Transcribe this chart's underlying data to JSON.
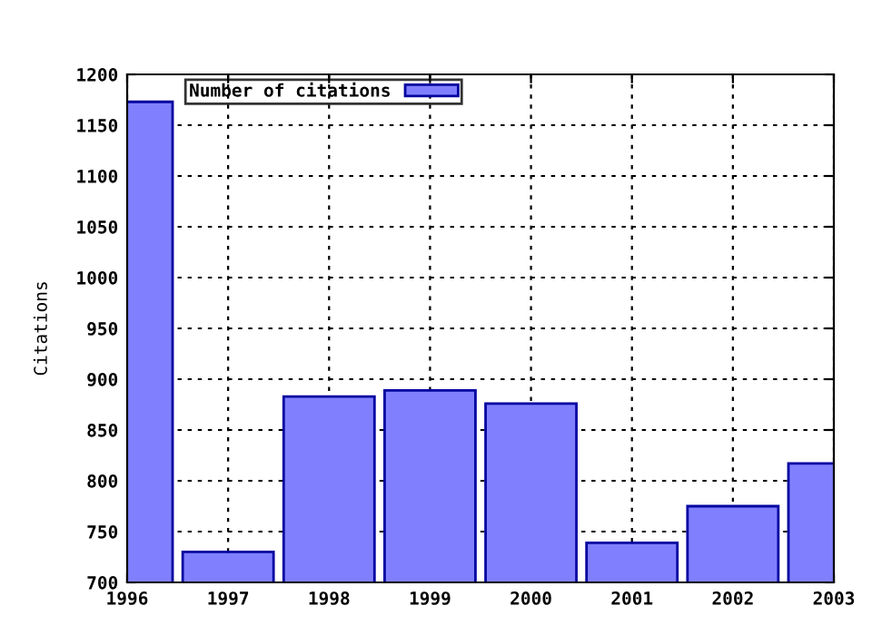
{
  "chart_data": {
    "type": "bar",
    "ylabel": "Citations",
    "x": [
      1996,
      1997,
      1998,
      1999,
      2000,
      2001,
      2002,
      2003
    ],
    "series": [
      {
        "name": "Number of citations",
        "color": "#8080ff",
        "values": [
          1173,
          730,
          883,
          889,
          876,
          739,
          775,
          817
        ]
      }
    ],
    "xlim": [
      1996,
      2003
    ],
    "xticks": [
      1996,
      1997,
      1998,
      1999,
      2000,
      2001,
      2002,
      2003
    ],
    "ylim": [
      700,
      1200
    ],
    "yticks": [
      700,
      750,
      800,
      850,
      900,
      950,
      1000,
      1050,
      1100,
      1150,
      1200
    ],
    "grid": true,
    "legend": "top left"
  }
}
